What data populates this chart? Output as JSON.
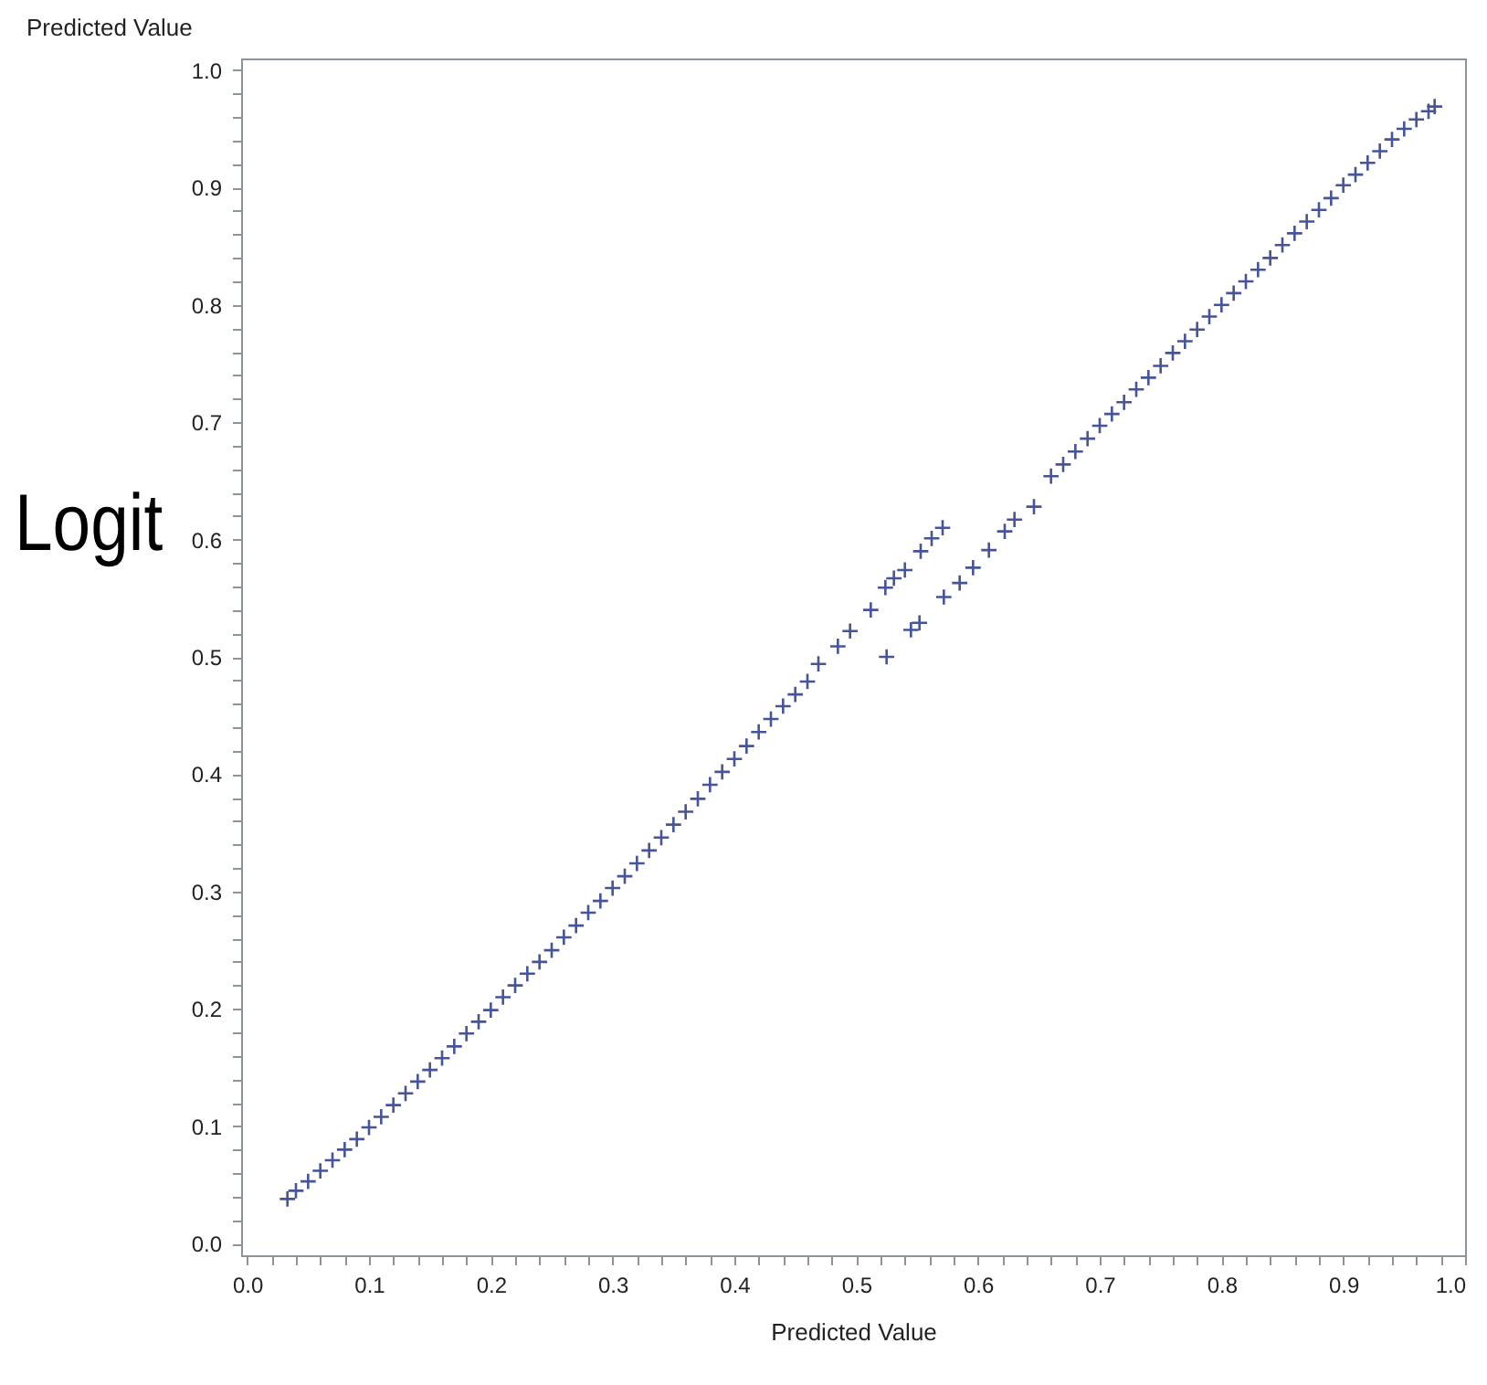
{
  "chart_data": {
    "type": "scatter",
    "xlabel": "Predicted Value",
    "ylabel": "Predicted Value",
    "annotations": [
      "Logit"
    ],
    "marker": "cross",
    "grid": false,
    "xlim": [
      -0.005,
      1.0
    ],
    "ylim": [
      -0.01,
      1.01
    ],
    "xticks": [
      {
        "value": 0,
        "label": "0.0"
      },
      {
        "value": 0.02,
        "label": null
      },
      {
        "value": 0.04,
        "label": null
      },
      {
        "value": 0.06,
        "label": null
      },
      {
        "value": 0.08,
        "label": null
      },
      0.1,
      {
        "value": 0.12,
        "label": null
      },
      {
        "value": 0.14,
        "label": null
      },
      {
        "value": 0.16,
        "label": null
      },
      {
        "value": 0.18,
        "label": null
      },
      0.2,
      {
        "value": 0.22,
        "label": null
      },
      {
        "value": 0.24,
        "label": null
      },
      {
        "value": 0.26,
        "label": null
      },
      {
        "value": 0.28,
        "label": null
      },
      0.3,
      {
        "value": 0.32,
        "label": null
      },
      {
        "value": 0.34,
        "label": null
      },
      {
        "value": 0.36,
        "label": null
      },
      {
        "value": 0.38,
        "label": null
      },
      0.4,
      {
        "value": 0.42,
        "label": null
      },
      {
        "value": 0.44,
        "label": null
      },
      {
        "value": 0.46,
        "label": null
      },
      {
        "value": 0.48,
        "label": null
      },
      0.5,
      {
        "value": 0.52,
        "label": null
      },
      {
        "value": 0.54,
        "label": null
      },
      {
        "value": 0.56,
        "label": null
      },
      {
        "value": 0.58,
        "label": null
      },
      0.6,
      {
        "value": 0.62,
        "label": null
      },
      {
        "value": 0.64,
        "label": null
      },
      {
        "value": 0.66,
        "label": null
      },
      {
        "value": 0.68,
        "label": null
      },
      0.7,
      {
        "value": 0.72,
        "label": null
      },
      {
        "value": 0.74,
        "label": null
      },
      {
        "value": 0.76,
        "label": null
      },
      {
        "value": 0.78,
        "label": null
      },
      0.8,
      {
        "value": 0.82,
        "label": null
      },
      {
        "value": 0.84,
        "label": null
      },
      {
        "value": 0.86,
        "label": null
      },
      {
        "value": 0.88,
        "label": null
      },
      0.9,
      {
        "value": 0.92,
        "label": null
      },
      {
        "value": 0.94,
        "label": null
      },
      {
        "value": 0.96,
        "label": null
      },
      {
        "value": 0.98,
        "label": null
      },
      {
        "value": 1,
        "label": "1.0"
      }
    ],
    "yticks": [
      {
        "value": 0,
        "label": "0.0"
      },
      {
        "value": 0.02,
        "label": null
      },
      {
        "value": 0.04,
        "label": null
      },
      {
        "value": 0.06,
        "label": null
      },
      {
        "value": 0.08,
        "label": null
      },
      0.1,
      {
        "value": 0.12,
        "label": null
      },
      {
        "value": 0.14,
        "label": null
      },
      {
        "value": 0.16,
        "label": null
      },
      {
        "value": 0.18,
        "label": null
      },
      0.2,
      {
        "value": 0.22,
        "label": null
      },
      {
        "value": 0.24,
        "label": null
      },
      {
        "value": 0.26,
        "label": null
      },
      {
        "value": 0.28,
        "label": null
      },
      0.3,
      {
        "value": 0.32,
        "label": null
      },
      {
        "value": 0.34,
        "label": null
      },
      {
        "value": 0.36,
        "label": null
      },
      {
        "value": 0.38,
        "label": null
      },
      0.4,
      {
        "value": 0.42,
        "label": null
      },
      {
        "value": 0.44,
        "label": null
      },
      {
        "value": 0.46,
        "label": null
      },
      {
        "value": 0.48,
        "label": null
      },
      0.5,
      {
        "value": 0.52,
        "label": null
      },
      {
        "value": 0.54,
        "label": null
      },
      {
        "value": 0.56,
        "label": null
      },
      {
        "value": 0.58,
        "label": null
      },
      0.6,
      {
        "value": 0.62,
        "label": null
      },
      {
        "value": 0.64,
        "label": null
      },
      {
        "value": 0.66,
        "label": null
      },
      {
        "value": 0.68,
        "label": null
      },
      0.7,
      {
        "value": 0.72,
        "label": null
      },
      {
        "value": 0.74,
        "label": null
      },
      {
        "value": 0.76,
        "label": null
      },
      {
        "value": 0.78,
        "label": null
      },
      0.8,
      {
        "value": 0.82,
        "label": null
      },
      {
        "value": 0.84,
        "label": null
      },
      {
        "value": 0.86,
        "label": null
      },
      {
        "value": 0.88,
        "label": null
      },
      0.9,
      {
        "value": 0.92,
        "label": null
      },
      {
        "value": 0.94,
        "label": null
      },
      {
        "value": 0.96,
        "label": null
      },
      {
        "value": 0.98,
        "label": null
      },
      {
        "value": 1,
        "label": "1.0"
      }
    ],
    "series": [
      {
        "color": "#46549a",
        "x": [
          0.033,
          0.04,
          0.05,
          0.06,
          0.07,
          0.08,
          0.09,
          0.1,
          0.11,
          0.12,
          0.13,
          0.14,
          0.15,
          0.16,
          0.17,
          0.18,
          0.19,
          0.2,
          0.21,
          0.22,
          0.23,
          0.24,
          0.25,
          0.26,
          0.27,
          0.28,
          0.29,
          0.3,
          0.31,
          0.32,
          0.33,
          0.34,
          0.35,
          0.36,
          0.37,
          0.38,
          0.39,
          0.4,
          0.41,
          0.42,
          0.43,
          0.44,
          0.45,
          0.46,
          0.469,
          0.485,
          0.495,
          0.512,
          0.524,
          0.531,
          0.54,
          0.553,
          0.562,
          0.571,
          0.525,
          0.545,
          0.552,
          0.572,
          0.585,
          0.596,
          0.609,
          0.622,
          0.63,
          0.646,
          0.66,
          0.67,
          0.68,
          0.69,
          0.7,
          0.71,
          0.72,
          0.73,
          0.74,
          0.75,
          0.76,
          0.77,
          0.78,
          0.79,
          0.8,
          0.81,
          0.82,
          0.83,
          0.84,
          0.85,
          0.86,
          0.87,
          0.88,
          0.89,
          0.9,
          0.91,
          0.92,
          0.93,
          0.94,
          0.95,
          0.96,
          0.97,
          0.975
        ],
        "values": [
          0.038,
          0.045,
          0.053,
          0.062,
          0.071,
          0.08,
          0.089,
          0.099,
          0.108,
          0.118,
          0.128,
          0.138,
          0.148,
          0.158,
          0.168,
          0.179,
          0.189,
          0.199,
          0.21,
          0.22,
          0.23,
          0.24,
          0.25,
          0.261,
          0.271,
          0.282,
          0.292,
          0.303,
          0.313,
          0.324,
          0.335,
          0.346,
          0.357,
          0.368,
          0.379,
          0.391,
          0.402,
          0.413,
          0.424,
          0.436,
          0.447,
          0.458,
          0.468,
          0.479,
          0.494,
          0.509,
          0.522,
          0.54,
          0.559,
          0.567,
          0.574,
          0.59,
          0.601,
          0.61,
          0.5,
          0.523,
          0.529,
          0.551,
          0.563,
          0.576,
          0.591,
          0.607,
          0.617,
          0.628,
          0.654,
          0.664,
          0.675,
          0.686,
          0.697,
          0.707,
          0.717,
          0.728,
          0.738,
          0.748,
          0.759,
          0.769,
          0.779,
          0.79,
          0.8,
          0.81,
          0.82,
          0.83,
          0.84,
          0.851,
          0.861,
          0.871,
          0.881,
          0.891,
          0.902,
          0.911,
          0.921,
          0.931,
          0.941,
          0.95,
          0.958,
          0.965,
          0.969
        ]
      }
    ]
  }
}
